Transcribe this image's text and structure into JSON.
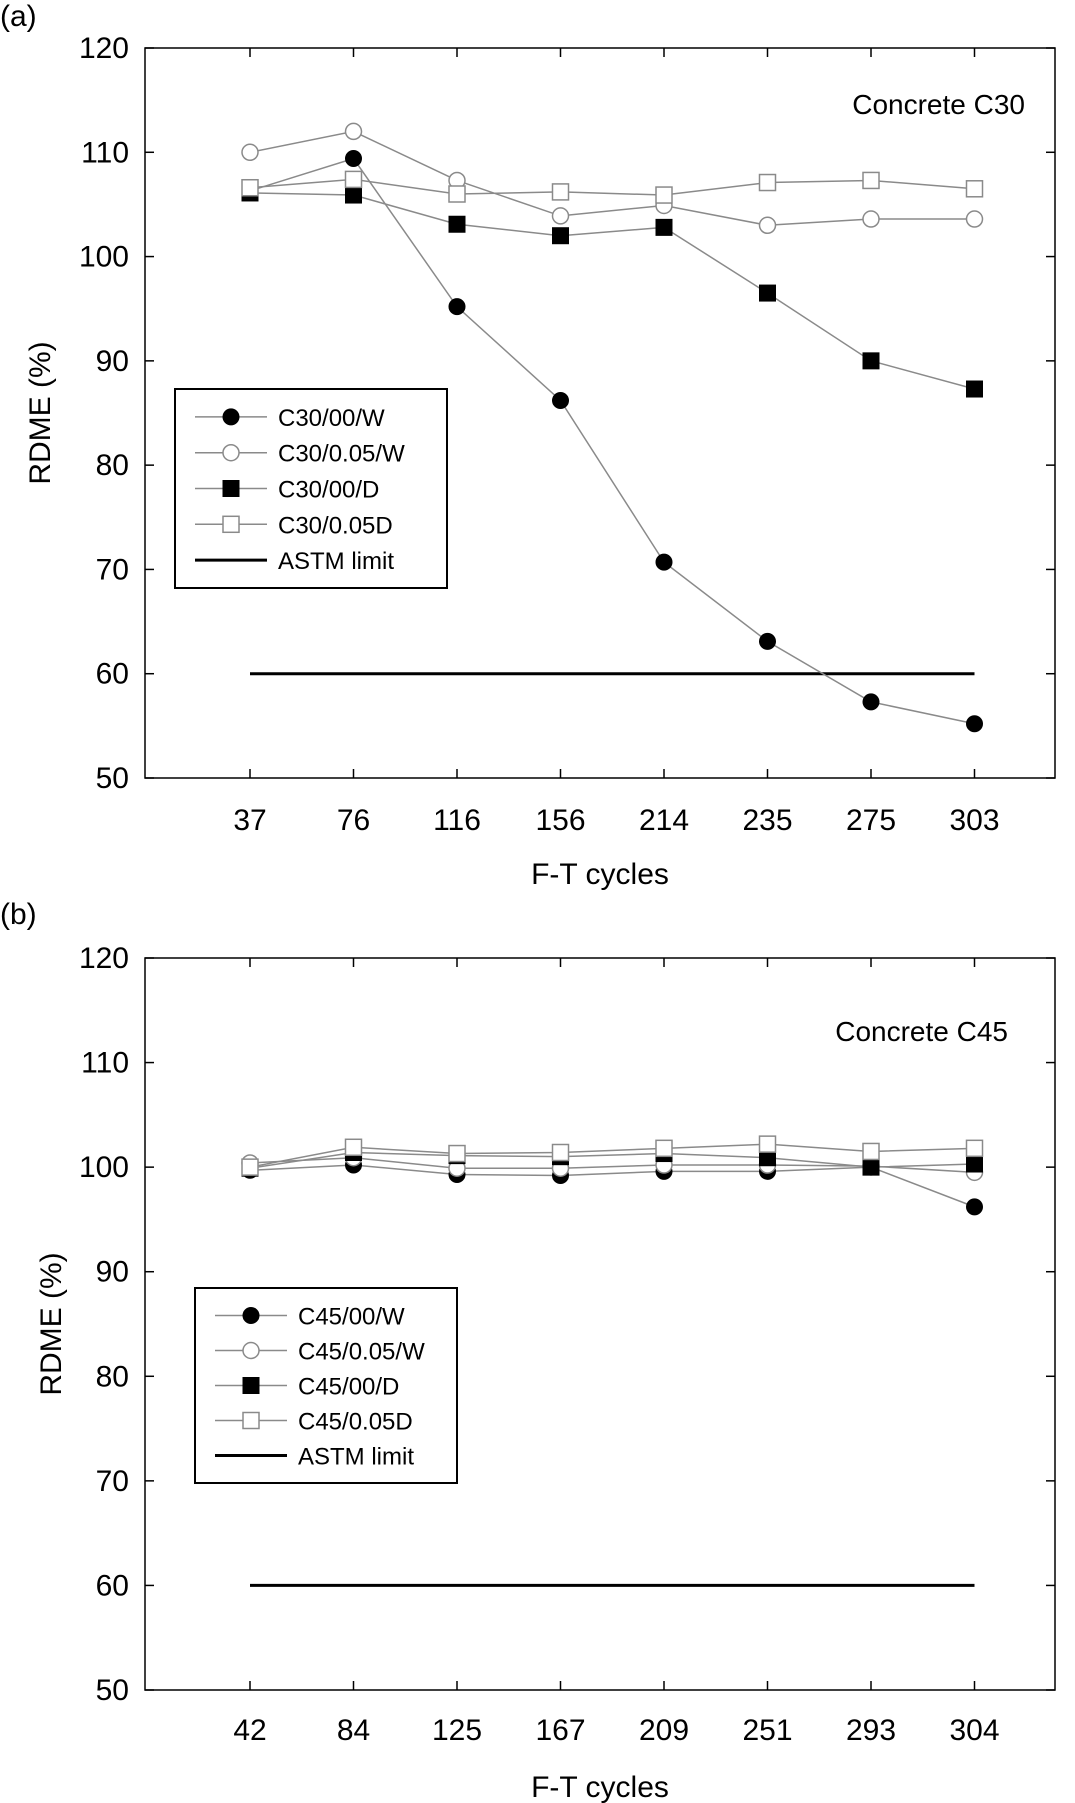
{
  "chart_data": [
    {
      "type": "line",
      "panel_label": "(a)",
      "annotation": "Concrete C30",
      "xlabel": "F-T cycles",
      "ylabel": "RDME (%)",
      "categories": [
        "37",
        "76",
        "116",
        "156",
        "214",
        "235",
        "275",
        "303"
      ],
      "ylim": [
        50,
        120
      ],
      "yticks": [
        "50",
        "60",
        "70",
        "80",
        "90",
        "100",
        "110",
        "120"
      ],
      "legend_position": "middle-left",
      "series": [
        {
          "name": "C30/00/W",
          "marker": "filled-circle",
          "values": [
            106.3,
            109.4,
            95.2,
            86.2,
            70.7,
            63.1,
            57.3,
            55.2
          ]
        },
        {
          "name": "C30/0.05/W",
          "marker": "open-circle",
          "values": [
            110.0,
            112.0,
            107.3,
            103.9,
            104.9,
            103.0,
            103.6,
            103.6
          ]
        },
        {
          "name": "C30/00/D",
          "marker": "filled-square",
          "values": [
            106.1,
            105.9,
            103.1,
            102.0,
            102.8,
            96.5,
            90.0,
            87.3
          ]
        },
        {
          "name": "C30/0.05D",
          "marker": "open-square",
          "values": [
            106.6,
            107.4,
            106.0,
            106.2,
            105.9,
            107.1,
            107.3,
            106.5
          ]
        }
      ],
      "reference_line": {
        "name": "ASTM limit",
        "value": 60
      }
    },
    {
      "type": "line",
      "panel_label": "(b)",
      "annotation": "Concrete C45",
      "xlabel": "F-T cycles",
      "ylabel": "RDME (%)",
      "categories": [
        "42",
        "84",
        "125",
        "167",
        "209",
        "251",
        "293",
        "304"
      ],
      "ylim": [
        50,
        120
      ],
      "yticks": [
        "50",
        "60",
        "70",
        "80",
        "90",
        "100",
        "110",
        "120"
      ],
      "legend_position": "middle-left",
      "series": [
        {
          "name": "C45/00/W",
          "marker": "filled-circle",
          "values": [
            99.7,
            100.2,
            99.3,
            99.2,
            99.6,
            99.6,
            100.0,
            96.2
          ]
        },
        {
          "name": "C45/0.05/W",
          "marker": "open-circle",
          "values": [
            100.4,
            100.9,
            99.9,
            99.9,
            100.2,
            100.2,
            100.1,
            99.5
          ]
        },
        {
          "name": "C45/00/D",
          "marker": "filled-square",
          "values": [
            99.9,
            101.4,
            101.1,
            101.0,
            101.3,
            100.9,
            100.0,
            100.3
          ]
        },
        {
          "name": "C45/0.05D",
          "marker": "open-square",
          "values": [
            100.0,
            101.9,
            101.3,
            101.4,
            101.8,
            102.2,
            101.5,
            101.8
          ]
        }
      ],
      "reference_line": {
        "name": "ASTM limit",
        "value": 60
      }
    }
  ]
}
